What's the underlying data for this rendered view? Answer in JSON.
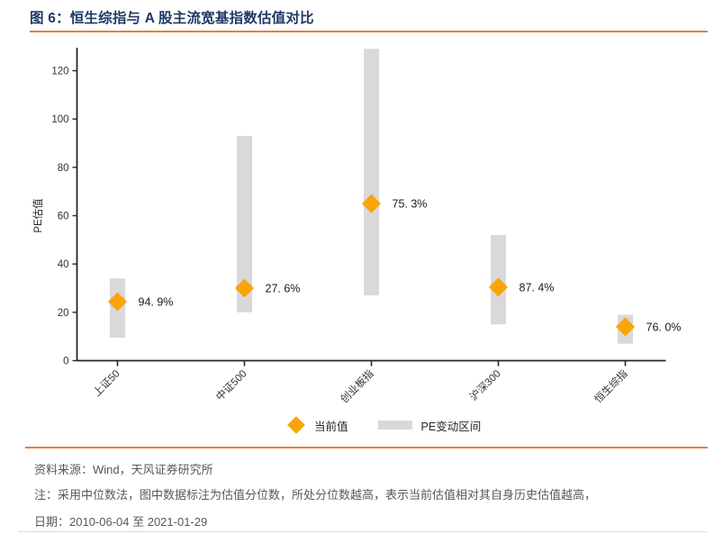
{
  "header": {
    "title": "图 6：恒生综指与 A 股主流宽基指数估值对比"
  },
  "footer": {
    "source": "资料来源：Wind，天风证券研究所",
    "note": "注：采用中位数法，图中数据标注为估值分位数，所处分位数越高，表示当前估值相对其自身历史估值越高，",
    "date": "日期：2010-06-04 至 2021-01-29"
  },
  "colors": {
    "accent_orange": "#ED7D31",
    "marker_orange": "#FAA40A",
    "range_gray": "#D9D9D9",
    "title_navy": "#1F3864",
    "footer_gray": "#595959",
    "axis_dark": "#262626"
  },
  "chart_data": {
    "type": "bar",
    "title": "恒生综指与 A 股主流宽基指数估值对比",
    "categories": [
      "上证50",
      "中证500",
      "创业板指",
      "沪深300",
      "恒生综指"
    ],
    "series": [
      {
        "name": "当前值",
        "style": "diamond-marker",
        "values": [
          24.4,
          30,
          65,
          30.4,
          14
        ]
      },
      {
        "name": "PE变动区间",
        "style": "range-bar",
        "low": [
          9.5,
          20,
          27,
          15,
          7
        ],
        "high": [
          34,
          93,
          129,
          52,
          19
        ]
      }
    ],
    "point_labels": [
      "94. 9%",
      "27. 6%",
      "75. 3%",
      "87. 4%",
      "76. 0%"
    ],
    "xlabel": "",
    "ylabel": "PE估值",
    "yticks": [
      0,
      20,
      40,
      60,
      80,
      100,
      120
    ],
    "ylim": [
      0,
      129.5
    ],
    "grid": false,
    "legend": [
      "当前值",
      "PE变动区间"
    ],
    "legend_position": "bottom-center"
  }
}
